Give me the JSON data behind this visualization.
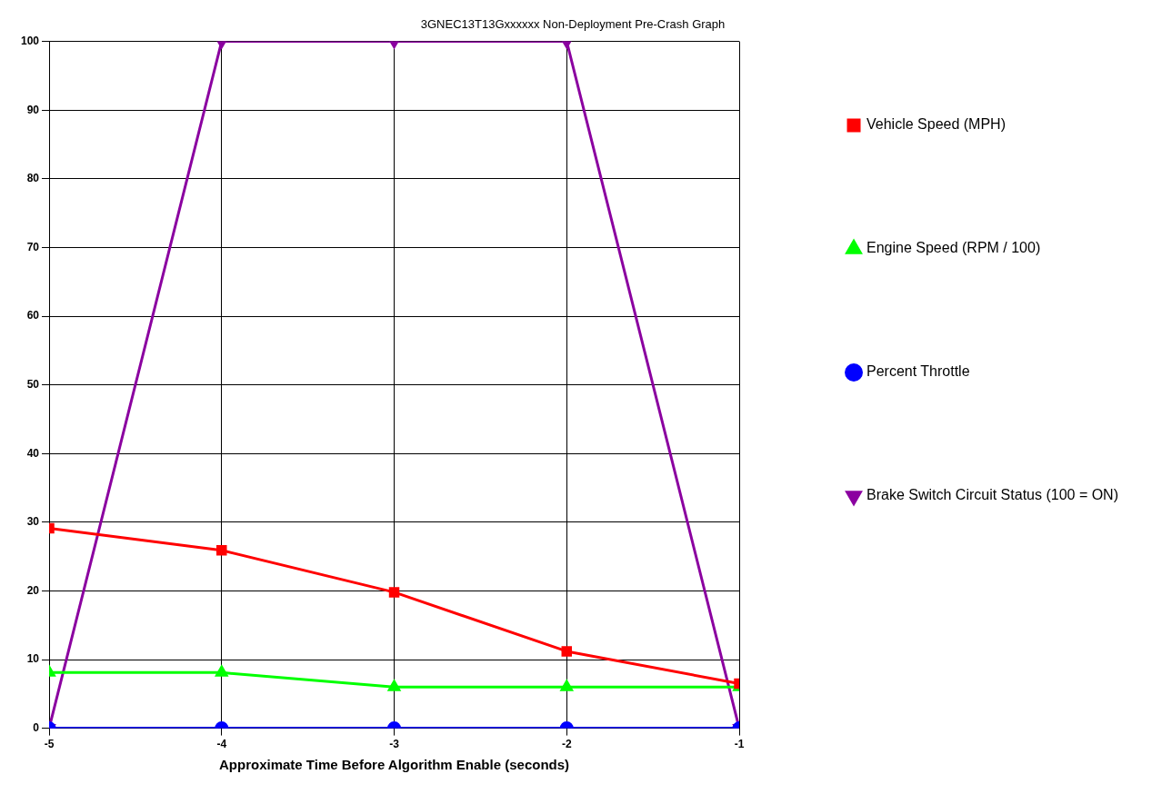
{
  "chart_data": {
    "type": "line",
    "title": "3GNEC13T13Gxxxxxx Non-Deployment Pre-Crash Graph",
    "xlabel": "Approximate Time Before Algorithm Enable (seconds)",
    "x": [
      -5,
      -4,
      -3,
      -2,
      -1
    ],
    "series": [
      {
        "name": "Vehicle Speed (MPH)",
        "color": "#ff0000",
        "marker": "square",
        "values": [
          29.1,
          25.9,
          19.8,
          11.2,
          6.5
        ]
      },
      {
        "name": "Engine Speed (RPM / 100)",
        "color": "#00ff00",
        "marker": "triangle",
        "values": [
          8.1,
          8.1,
          6.0,
          6.0,
          6.0
        ]
      },
      {
        "name": "Percent Throttle",
        "color": "#0000ff",
        "marker": "circle",
        "values": [
          0,
          0,
          0,
          0,
          0
        ]
      },
      {
        "name": "Brake Switch Circuit Status (100 = ON)",
        "color": "#8b00a0",
        "marker": "triangle-down",
        "values": [
          0,
          100,
          100,
          100,
          0
        ]
      }
    ],
    "xlim": [
      -5,
      -1
    ],
    "xticks": [
      -5,
      -4,
      -3,
      -2,
      -1
    ],
    "ylim": [
      0,
      100
    ],
    "yticks": [
      0,
      10,
      20,
      30,
      40,
      50,
      60,
      70,
      80,
      90,
      100
    ],
    "grid": true,
    "legend": "right",
    "line_style": "solid"
  }
}
